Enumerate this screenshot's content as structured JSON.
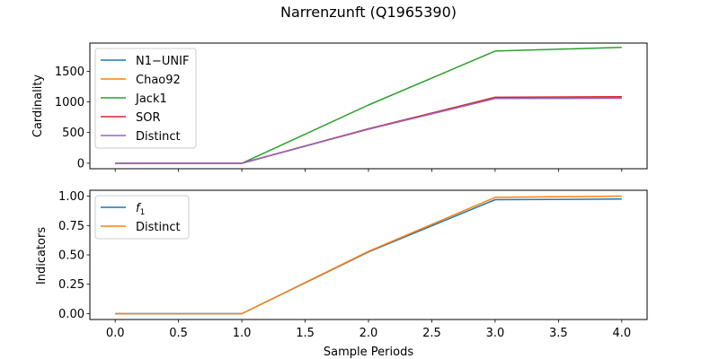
{
  "figure": {
    "title": "Narrenzunft (Q1965390)",
    "xlabel": "Sample Periods"
  },
  "chart_data": [
    {
      "type": "line",
      "ylabel": "Cardinality",
      "x": [
        0,
        1,
        2,
        3,
        4
      ],
      "xlim": [
        -0.2,
        4.2
      ],
      "ylim": [
        -90,
        1960
      ],
      "xticks": [
        0.0,
        0.5,
        1.0,
        1.5,
        2.0,
        2.5,
        3.0,
        3.5,
        4.0
      ],
      "xtick_labels": [],
      "yticks": [
        0,
        500,
        1000,
        1500
      ],
      "ytick_labels": [
        "0",
        "500",
        "1000",
        "1500"
      ],
      "grid": false,
      "legend_position": "upper-left",
      "series": [
        {
          "name": "N1−UNIF",
          "color": "#1f77b4",
          "values": [
            0,
            0,
            560,
            1062,
            1070
          ]
        },
        {
          "name": "Chao92",
          "color": "#ff7f0e",
          "values": [
            0,
            0,
            560,
            1068,
            1078
          ]
        },
        {
          "name": "Jack1",
          "color": "#2ca02c",
          "values": [
            0,
            0,
            950,
            1830,
            1890
          ]
        },
        {
          "name": "SOR",
          "color": "#d62728",
          "values": [
            0,
            0,
            562,
            1075,
            1085
          ]
        },
        {
          "name": "Distinct",
          "color": "#9467bd",
          "values": [
            0,
            0,
            555,
            1055,
            1060
          ]
        }
      ]
    },
    {
      "type": "line",
      "ylabel": "Indicators",
      "x": [
        0,
        1,
        2,
        3,
        4
      ],
      "xlim": [
        -0.2,
        4.2
      ],
      "ylim": [
        -0.05,
        1.05
      ],
      "xticks": [
        0.0,
        0.5,
        1.0,
        1.5,
        2.0,
        2.5,
        3.0,
        3.5,
        4.0
      ],
      "xtick_labels": [
        "0.0",
        "0.5",
        "1.0",
        "1.5",
        "2.0",
        "2.5",
        "3.0",
        "3.5",
        "4.0"
      ],
      "yticks": [
        0.0,
        0.25,
        0.5,
        0.75,
        1.0
      ],
      "ytick_labels": [
        "0.00",
        "0.25",
        "0.50",
        "0.75",
        "1.00"
      ],
      "grid": false,
      "legend_position": "upper-left",
      "series": [
        {
          "name": "f",
          "name_sub": "1",
          "color": "#1f77b4",
          "values": [
            0,
            0,
            0.525,
            0.97,
            0.975
          ]
        },
        {
          "name": "Distinct",
          "color": "#ff7f0e",
          "values": [
            0,
            0,
            0.53,
            0.99,
            1.0
          ]
        }
      ]
    }
  ]
}
